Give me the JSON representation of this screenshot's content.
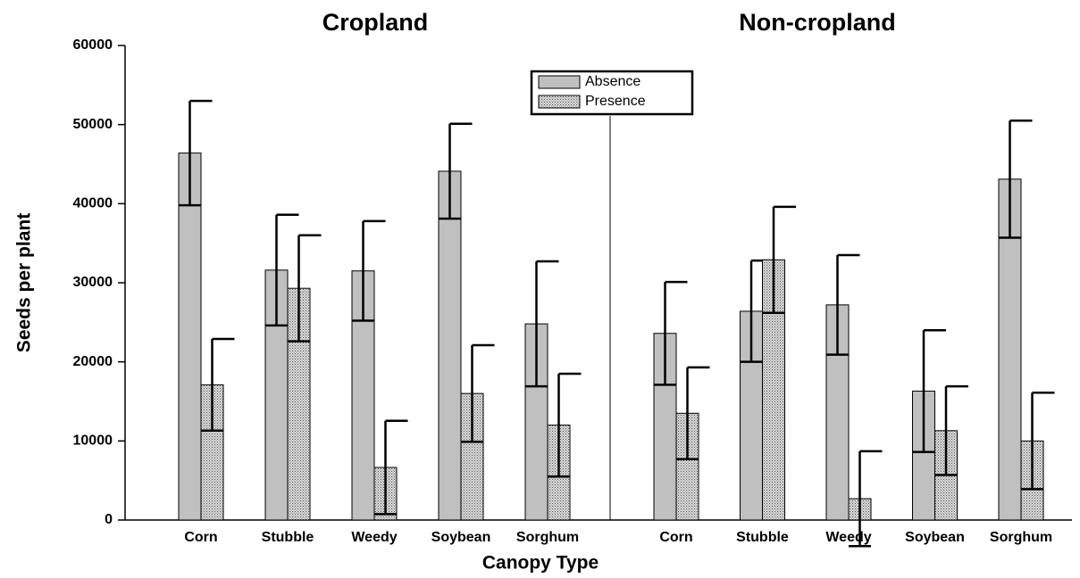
{
  "chart_data": {
    "type": "bar",
    "panels": [
      {
        "title": "Cropland"
      },
      {
        "title": "Non-cropland"
      }
    ],
    "categories": [
      "Corn",
      "Stubble",
      "Weedy",
      "Soybean",
      "Sorghum",
      "Corn",
      "Stubble",
      "Weedy",
      "Soybean",
      "Sorghum"
    ],
    "series": [
      {
        "name": "Absence",
        "color": "#c0c0c0",
        "values": [
          46400,
          31600,
          31500,
          44100,
          24800,
          23600,
          26400,
          27200,
          16300,
          43100
        ],
        "errors": [
          6600,
          7000,
          6300,
          6000,
          7900,
          6500,
          6400,
          6300,
          7700,
          7400
        ]
      },
      {
        "name": "Presence",
        "color": "#d8d8d8",
        "values": [
          17100,
          29300,
          6650,
          16000,
          12000,
          13500,
          32900,
          2700,
          11300,
          10000
        ],
        "errors": [
          5800,
          6700,
          5900,
          6100,
          6500,
          5800,
          6700,
          6000,
          5600,
          6100
        ]
      }
    ],
    "xlabel": "Canopy Type",
    "ylabel": "Seeds per plant",
    "ylim": [
      0,
      60000
    ],
    "yticks": [
      0,
      10000,
      20000,
      30000,
      40000,
      50000,
      60000
    ],
    "legend": "top-center"
  }
}
